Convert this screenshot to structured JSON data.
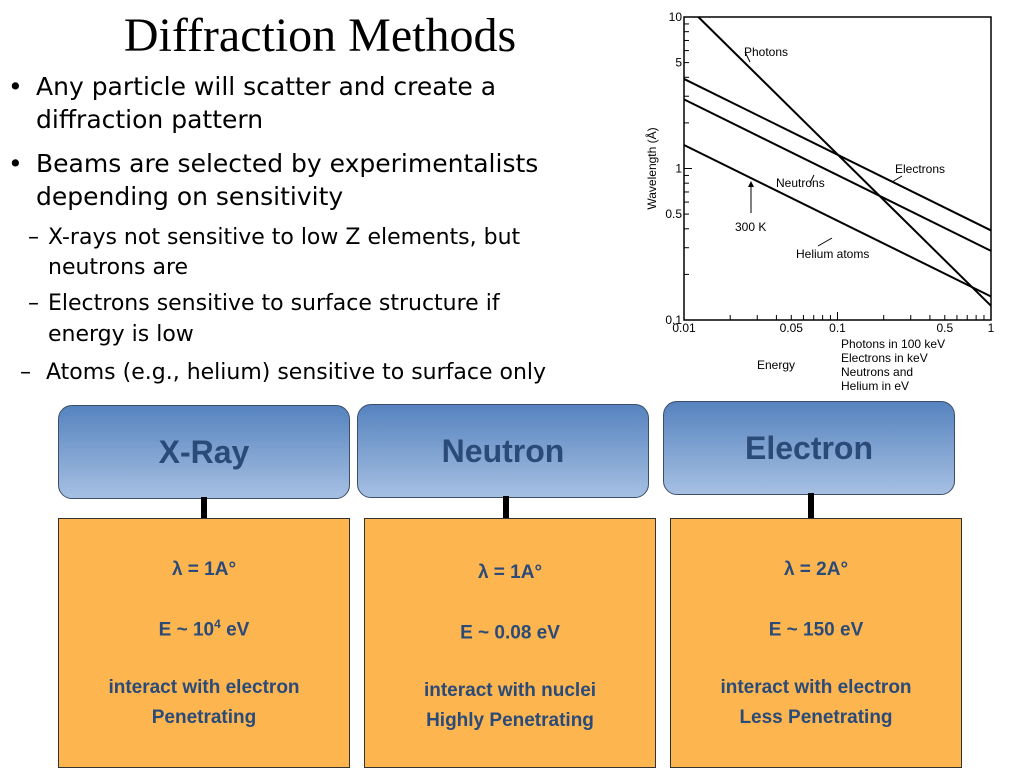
{
  "slide": {
    "title": "Diffraction Methods",
    "bullets": [
      {
        "level": 1,
        "marker": "•",
        "lines": [
          "Any particle will scatter and create a",
          "diffraction pattern"
        ]
      },
      {
        "level": 1,
        "marker": "•",
        "lines": [
          "Beams are selected by experimentalists",
          "depending on sensitivity"
        ]
      },
      {
        "level": 2,
        "marker": "–",
        "lines": [
          "X-rays not sensitive to low Z elements, but",
          "neutrons are"
        ]
      },
      {
        "level": 2,
        "marker": "–",
        "lines": [
          "Electrons sensitive to surface structure if",
          "energy is low"
        ]
      },
      {
        "level": 2,
        "marker": "–",
        "lines": [
          "Atoms (e.g., helium) sensitive to surface only"
        ]
      }
    ],
    "columns": [
      {
        "header": "X-Ray",
        "lambda": "λ = 1A°",
        "energy_prefix": "E ~ 10",
        "energy_sup": "4",
        "energy_suffix": " eV",
        "line1": "interact with electron",
        "line2": "Penetrating"
      },
      {
        "header": "Neutron",
        "lambda": "λ = 1A°",
        "energy_prefix": "E ~ 0.08 eV",
        "energy_sup": "",
        "energy_suffix": "",
        "line1": "interact with nuclei",
        "line2": "Highly Penetrating"
      },
      {
        "header": "Electron",
        "lambda": "λ = 2A°",
        "energy_prefix": "E ~ 150 eV",
        "energy_sup": "",
        "energy_suffix": "",
        "line1": "interact with electron",
        "line2": "Less Penetrating"
      }
    ],
    "colors": {
      "header_top": "#5683bf",
      "header_bottom": "#a6c0e2",
      "box_fill": "#fdb54f",
      "text_blue": "#2a4a78"
    }
  },
  "chart_data": {
    "type": "line",
    "xscale": "log",
    "yscale": "log",
    "xlim": [
      0.01,
      1
    ],
    "ylim": [
      0.1,
      10
    ],
    "ylabel": "Wavelength (Å)",
    "xlabel": "Energy",
    "xunits": [
      "Photons in 100 keV",
      "Electrons in keV",
      "Neutrons and",
      "Helium in eV"
    ],
    "xticks": [
      "0.01",
      "0.05",
      "0.1",
      "0.5",
      "1"
    ],
    "yticks": [
      "0.1",
      "0.5",
      "1",
      "5",
      "10"
    ],
    "annotation": "300 K",
    "series": [
      {
        "name": "Photons",
        "x": [
          0.0124,
          1
        ],
        "y": [
          10,
          0.124
        ]
      },
      {
        "name": "Electrons",
        "x": [
          0.01,
          1
        ],
        "y": [
          3.9,
          0.39
        ]
      },
      {
        "name": "Neutrons",
        "x": [
          0.01,
          1
        ],
        "y": [
          2.86,
          0.286
        ]
      },
      {
        "name": "Helium atoms",
        "x": [
          0.01,
          1
        ],
        "y": [
          1.43,
          0.143
        ]
      }
    ]
  }
}
